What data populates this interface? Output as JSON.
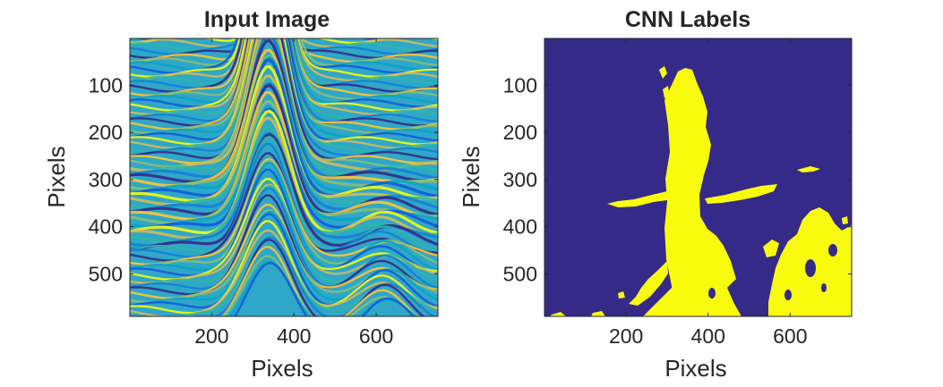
{
  "chart_data": [
    {
      "type": "heatmap",
      "title": "Input Image",
      "xlabel": "Pixels",
      "ylabel": "Pixels",
      "xlim": [
        1,
        750
      ],
      "ylim": [
        1,
        590
      ],
      "y_direction": "reversed",
      "x_ticks": [
        200,
        400,
        600
      ],
      "y_ticks": [
        100,
        200,
        300,
        400,
        500
      ],
      "colormap": "parula",
      "grid": false,
      "description_colors": {
        "low": "#352a87",
        "mid": "#19b2c4",
        "high": "#f9fb0e"
      }
    },
    {
      "type": "heatmap",
      "title": "CNN Labels",
      "xlabel": "Pixels",
      "ylabel": "Pixels",
      "xlim": [
        1,
        750
      ],
      "ylim": [
        1,
        590
      ],
      "y_direction": "reversed",
      "x_ticks": [
        200,
        400,
        600
      ],
      "y_ticks": [
        100,
        200,
        300,
        400,
        500
      ],
      "colormap": "binary",
      "grid": false,
      "classes": [
        {
          "value": 0,
          "color": "#352a87"
        },
        {
          "value": 1,
          "color": "#f9fb0e"
        }
      ]
    }
  ],
  "colors": {
    "axis": "#262626",
    "background": "#ffffff"
  }
}
